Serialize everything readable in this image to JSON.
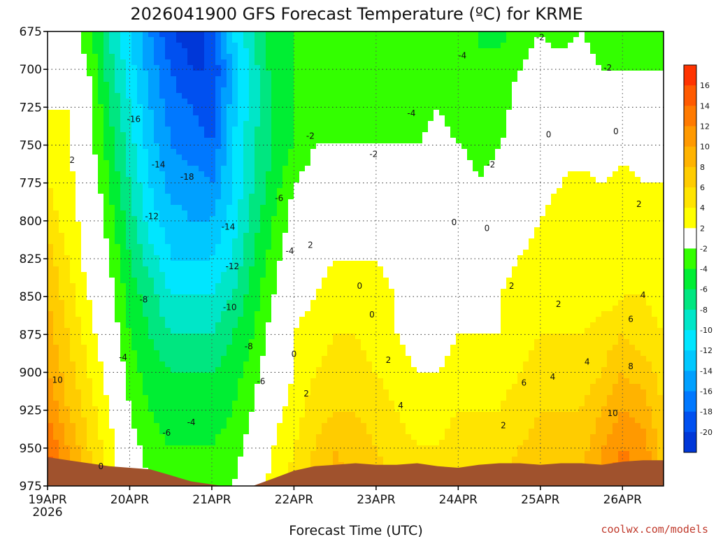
{
  "chart_data": {
    "type": "heatmap",
    "title": "2026041900 GFS Forecast Temperature (ºC) for KRME",
    "xlabel": "Forecast Time (UTC)",
    "ylabel": "",
    "credit": "coolwx.com/models",
    "y_ticks": [
      675,
      700,
      725,
      750,
      775,
      800,
      825,
      850,
      875,
      900,
      925,
      950,
      975
    ],
    "ylim": [
      675,
      975
    ],
    "x_ticks": [
      {
        "day": 0,
        "label": "19APR",
        "sublabel": "2026"
      },
      {
        "day": 1,
        "label": "20APR",
        "sublabel": ""
      },
      {
        "day": 2,
        "label": "21APR",
        "sublabel": ""
      },
      {
        "day": 3,
        "label": "22APR",
        "sublabel": ""
      },
      {
        "day": 4,
        "label": "23APR",
        "sublabel": ""
      },
      {
        "day": 5,
        "label": "24APR",
        "sublabel": ""
      },
      {
        "day": 6,
        "label": "25APR",
        "sublabel": ""
      },
      {
        "day": 7,
        "label": "26APR",
        "sublabel": ""
      }
    ],
    "xlim_days": [
      0,
      7.5
    ],
    "colorbar": {
      "ticks": [
        16,
        14,
        12,
        10,
        8,
        6,
        4,
        2,
        -2,
        -4,
        -6,
        -8,
        -10,
        -12,
        -14,
        -16,
        -18,
        -20
      ],
      "bands": [
        {
          "min": 16,
          "max": 18,
          "color": "#ff3300"
        },
        {
          "min": 14,
          "max": 16,
          "color": "#ff5a00"
        },
        {
          "min": 12,
          "max": 14,
          "color": "#ff7a00"
        },
        {
          "min": 10,
          "max": 12,
          "color": "#ff9900"
        },
        {
          "min": 8,
          "max": 10,
          "color": "#ffb300"
        },
        {
          "min": 6,
          "max": 8,
          "color": "#ffcc00"
        },
        {
          "min": 4,
          "max": 6,
          "color": "#ffe400"
        },
        {
          "min": 2,
          "max": 4,
          "color": "#ffff00"
        },
        {
          "min": -2,
          "max": 2,
          "color": "#ffffff"
        },
        {
          "min": -4,
          "max": -2,
          "color": "#33ff00"
        },
        {
          "min": -6,
          "max": -4,
          "color": "#00ee33"
        },
        {
          "min": -8,
          "max": -6,
          "color": "#00e680"
        },
        {
          "min": -10,
          "max": -8,
          "color": "#00e6c8"
        },
        {
          "min": -12,
          "max": -10,
          "color": "#00e6ff"
        },
        {
          "min": -14,
          "max": -12,
          "color": "#00c8ff"
        },
        {
          "min": -16,
          "max": -14,
          "color": "#00a0ff"
        },
        {
          "min": -18,
          "max": -16,
          "color": "#0078ff"
        },
        {
          "min": -20,
          "max": -18,
          "color": "#0050f0"
        },
        {
          "min": -22,
          "max": -20,
          "color": "#0037d8"
        }
      ]
    },
    "surface_pressure": [
      956,
      958,
      960,
      962,
      963,
      964,
      968,
      972,
      974,
      976,
      975,
      970,
      965,
      962,
      961,
      960,
      961,
      961,
      960,
      962,
      963,
      961,
      960,
      960,
      961,
      960,
      960,
      961,
      959,
      958,
      958
    ],
    "temperature_grid": {
      "times_days": [
        0,
        0.25,
        0.5,
        0.75,
        1,
        1.25,
        1.5,
        1.75,
        2,
        2.25,
        2.5,
        2.75,
        3,
        3.25,
        3.5,
        3.75,
        4,
        4.25,
        4.5,
        4.75,
        5,
        5.25,
        5.5,
        5.75,
        6,
        6.25,
        6.5,
        6.75,
        7,
        7.25,
        7.5
      ],
      "levels_hpa": [
        675,
        700,
        725,
        750,
        775,
        800,
        825,
        850,
        875,
        900,
        925,
        950,
        975
      ],
      "celsius": [
        [
          -1,
          -1,
          -3,
          -8,
          -12,
          -16,
          -20,
          -21,
          -19,
          -12,
          -8,
          -5,
          -4,
          -4,
          -4,
          -3,
          -4,
          -3,
          -3,
          -3,
          -4,
          -4,
          -5,
          -3,
          -2,
          -3,
          -2,
          -3,
          -3,
          -3,
          -3
        ],
        [
          0,
          0,
          -2,
          -7,
          -11,
          -15,
          -18,
          -20,
          -20,
          -14,
          -9,
          -5,
          -4,
          -3,
          -4,
          -3,
          -3,
          -3,
          -3,
          -2,
          -3,
          -4,
          -3,
          -2,
          -1,
          -1,
          -1,
          -2,
          -2,
          -2,
          -2
        ],
        [
          2,
          2,
          -1,
          -6,
          -10,
          -14,
          -17,
          -18,
          -19,
          -13,
          -9,
          -6,
          -4,
          -3,
          -3,
          -3,
          -3,
          -3,
          -3,
          -2,
          -3,
          -4,
          -3,
          -1,
          0,
          0,
          0,
          0,
          -1,
          -1,
          -1
        ],
        [
          3,
          2,
          -1,
          -5,
          -9,
          -13,
          -16,
          -17,
          -18,
          -12,
          -8,
          -6,
          -4,
          -2,
          -2,
          -2,
          -2,
          -2,
          -2,
          -1,
          -2,
          -3,
          -2,
          -1,
          0,
          1,
          0,
          0,
          1,
          0,
          0
        ],
        [
          4,
          3,
          0,
          -4,
          -8,
          -12,
          -15,
          -15,
          -16,
          -12,
          -8,
          -5,
          -2,
          -1,
          -1,
          0,
          -1,
          -1,
          0,
          0,
          0,
          -2,
          -1,
          0,
          1,
          2,
          3,
          2,
          3,
          2,
          2
        ],
        [
          5,
          3,
          1,
          -3,
          -7,
          -11,
          -13,
          -14,
          -14,
          -11,
          -7,
          -4,
          -1,
          0,
          1,
          1,
          1,
          0,
          1,
          0,
          0,
          -1,
          -1,
          1,
          2,
          3,
          3,
          3,
          3,
          3,
          3
        ],
        [
          7,
          4,
          1,
          -2,
          -6,
          -9,
          -12,
          -12,
          -12,
          -10,
          -6,
          -3,
          0,
          1,
          2,
          2,
          2,
          1,
          1,
          0,
          1,
          0,
          1,
          2,
          3,
          3,
          3,
          3,
          3,
          3,
          3
        ],
        [
          8,
          5,
          2,
          -1,
          -5,
          -7,
          -10,
          -10,
          -10,
          -8,
          -5,
          -2,
          1,
          2,
          3,
          3,
          3,
          2,
          1,
          1,
          1,
          1,
          2,
          3,
          3,
          3,
          3,
          3,
          4,
          4,
          3
        ],
        [
          9,
          6,
          3,
          0,
          -4,
          -6,
          -8,
          -8,
          -8,
          -6,
          -4,
          -1,
          2,
          3,
          4,
          4,
          3,
          2,
          1,
          1,
          2,
          2,
          2,
          3,
          4,
          4,
          4,
          5,
          6,
          5,
          4
        ],
        [
          10,
          7,
          4,
          1,
          -3,
          -5,
          -6,
          -6,
          -6,
          -5,
          -3,
          0,
          2,
          4,
          5,
          5,
          4,
          3,
          2,
          2,
          3,
          3,
          3,
          4,
          5,
          5,
          5,
          6,
          8,
          7,
          5
        ],
        [
          12,
          8,
          5,
          2,
          -2,
          -4,
          -5,
          -5,
          -5,
          -4,
          -2,
          1,
          3,
          5,
          6,
          6,
          5,
          4,
          3,
          3,
          4,
          4,
          4,
          5,
          6,
          6,
          6,
          8,
          10,
          9,
          6
        ],
        [
          14,
          10,
          6,
          3,
          -1,
          -3,
          -4,
          -4,
          -4,
          -3,
          -1,
          2,
          4,
          6,
          8,
          7,
          6,
          5,
          4,
          4,
          5,
          5,
          5,
          6,
          7,
          7,
          7,
          10,
          12,
          11,
          7
        ],
        [
          16,
          12,
          8,
          4,
          0,
          -2,
          -3,
          -3,
          -3,
          -2,
          0,
          3,
          5,
          7,
          9,
          8,
          7,
          6,
          5,
          5,
          6,
          6,
          6,
          7,
          8,
          8,
          8,
          11,
          14,
          12,
          8
        ]
      ]
    },
    "contour_labels": [
      {
        "text": "-16",
        "day": 1.05,
        "p": 733
      },
      {
        "text": "-14",
        "day": 1.35,
        "p": 763
      },
      {
        "text": "-18",
        "day": 1.7,
        "p": 771
      },
      {
        "text": "-12",
        "day": 1.27,
        "p": 797
      },
      {
        "text": "-14",
        "day": 2.2,
        "p": 804
      },
      {
        "text": "-12",
        "day": 2.25,
        "p": 830
      },
      {
        "text": "-10",
        "day": 2.22,
        "p": 857
      },
      {
        "text": "-8",
        "day": 1.17,
        "p": 852
      },
      {
        "text": "-8",
        "day": 2.45,
        "p": 883
      },
      {
        "text": "-6",
        "day": 2.6,
        "p": 906
      },
      {
        "text": "-6",
        "day": 1.45,
        "p": 940
      },
      {
        "text": "-4",
        "day": 1.75,
        "p": 933
      },
      {
        "text": "-4",
        "day": 0.92,
        "p": 890
      },
      {
        "text": "-6",
        "day": 2.82,
        "p": 785
      },
      {
        "text": "-4",
        "day": 2.95,
        "p": 820
      },
      {
        "text": "-4",
        "day": 5.05,
        "p": 691
      },
      {
        "text": "-4",
        "day": 4.43,
        "p": 729
      },
      {
        "text": "-2",
        "day": 3.2,
        "p": 744
      },
      {
        "text": "-2",
        "day": 3.97,
        "p": 756
      },
      {
        "text": "-2",
        "day": 5.4,
        "p": 763
      },
      {
        "text": "-2",
        "day": 6.0,
        "p": 679
      },
      {
        "text": "-2",
        "day": 6.82,
        "p": 699
      },
      {
        "text": "0",
        "day": 6.1,
        "p": 743
      },
      {
        "text": "0",
        "day": 6.92,
        "p": 741
      },
      {
        "text": "0",
        "day": 4.95,
        "p": 801
      },
      {
        "text": "0",
        "day": 5.35,
        "p": 805
      },
      {
        "text": "0",
        "day": 3.8,
        "p": 843
      },
      {
        "text": "0",
        "day": 3.95,
        "p": 862
      },
      {
        "text": "0",
        "day": 3.0,
        "p": 888
      },
      {
        "text": "0",
        "day": 0.65,
        "p": 962
      },
      {
        "text": "2",
        "day": 0.3,
        "p": 760
      },
      {
        "text": "2",
        "day": 3.2,
        "p": 816
      },
      {
        "text": "2",
        "day": 3.15,
        "p": 914
      },
      {
        "text": "2",
        "day": 4.15,
        "p": 892
      },
      {
        "text": "2",
        "day": 5.65,
        "p": 843
      },
      {
        "text": "2",
        "day": 6.22,
        "p": 855
      },
      {
        "text": "2",
        "day": 7.2,
        "p": 789
      },
      {
        "text": "2",
        "day": 5.55,
        "p": 935
      },
      {
        "text": "4",
        "day": 4.3,
        "p": 922
      },
      {
        "text": "4",
        "day": 6.15,
        "p": 903
      },
      {
        "text": "4",
        "day": 6.57,
        "p": 893
      },
      {
        "text": "4",
        "day": 7.25,
        "p": 849
      },
      {
        "text": "6",
        "day": 5.8,
        "p": 907
      },
      {
        "text": "6",
        "day": 7.1,
        "p": 865
      },
      {
        "text": "8",
        "day": 7.1,
        "p": 896
      },
      {
        "text": "10",
        "day": 0.12,
        "p": 905
      },
      {
        "text": "10",
        "day": 6.88,
        "p": 927
      }
    ]
  }
}
